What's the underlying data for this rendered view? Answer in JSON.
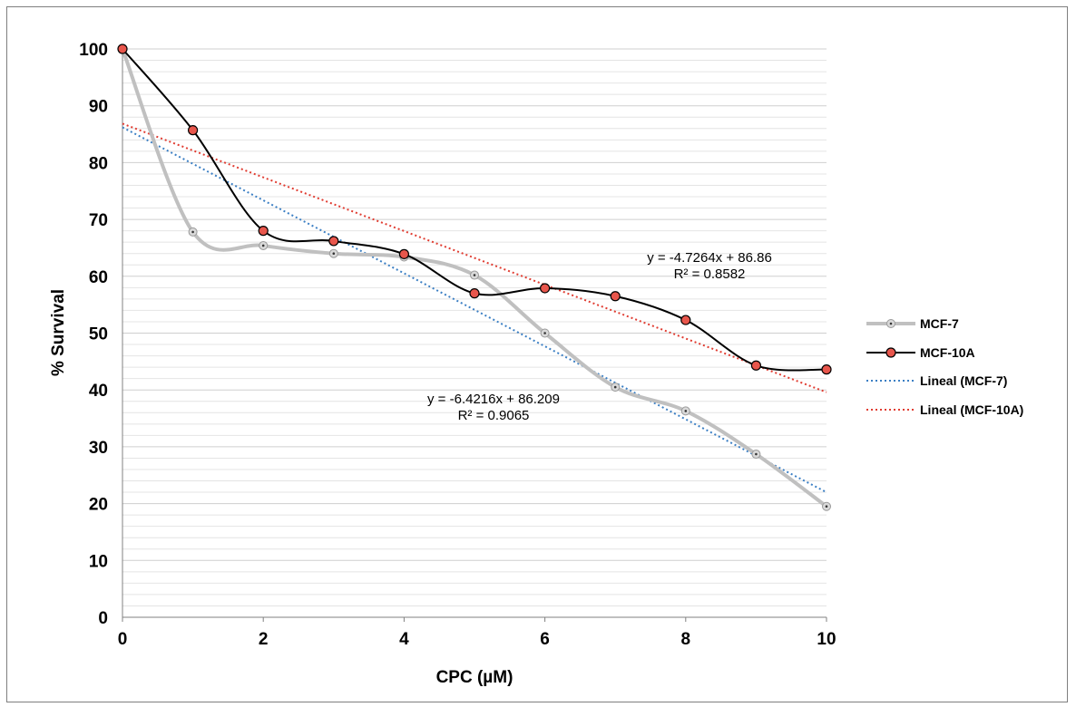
{
  "chart_data": {
    "type": "line",
    "xlabel": "CPC (µM)",
    "ylabel": "% Survival",
    "xlim": [
      0,
      10
    ],
    "ylim": [
      0,
      100
    ],
    "x_ticks": [
      "0",
      "2",
      "4",
      "6",
      "8",
      "10"
    ],
    "y_ticks": [
      "0",
      "10",
      "20",
      "30",
      "40",
      "50",
      "60",
      "70",
      "80",
      "90",
      "100"
    ],
    "grid": "horizontal minor gridlines every 2 units",
    "legend_position": "right",
    "x": [
      0,
      1,
      2,
      3,
      4,
      5,
      6,
      7,
      8,
      9,
      10
    ],
    "series": [
      {
        "name": "MCF-7",
        "color": "#c0c0c0",
        "marker_fill": "#d9d9d9",
        "values": [
          100,
          67.8,
          65.4,
          64.0,
          63.4,
          60.2,
          50.0,
          40.5,
          36.3,
          28.7,
          19.5
        ]
      },
      {
        "name": "MCF-10A",
        "color": "#000000",
        "marker_fill": "#e8564c",
        "values": [
          100,
          85.7,
          68.0,
          66.2,
          63.9,
          57.0,
          57.9,
          56.5,
          52.3,
          44.3,
          43.6
        ]
      }
    ],
    "trendlines": [
      {
        "name": "Lineal (MCF-7)",
        "color": "#3b7fc4",
        "slope": -6.4216,
        "intercept": 86.209,
        "equation": "y = -6.4216x + 86.209",
        "r2": "R² = 0.9065"
      },
      {
        "name": "Lineal (MCF-10A)",
        "color": "#e03c31",
        "slope": -4.7264,
        "intercept": 86.86,
        "equation": "y = -4.7264x + 86.86",
        "r2": "R² = 0.8582"
      }
    ]
  }
}
